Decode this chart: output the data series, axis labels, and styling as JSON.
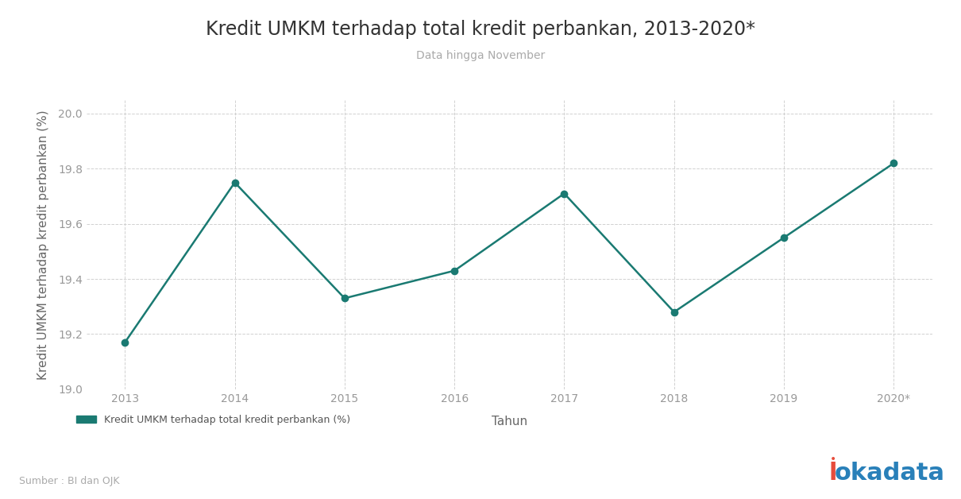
{
  "title": "Kredit UMKM terhadap total kredit perbankan, 2013-2020*",
  "subtitle": "Data hingga November",
  "xlabel": "Tahun",
  "ylabel": "Kredit UMKM terhadap kredit perbankan (%)",
  "source": "Sumber : BI dan OJK",
  "legend_label": "Kredit UMKM terhadap total kredit perbankan (%)",
  "years": [
    "2013",
    "2014",
    "2015",
    "2016",
    "2017",
    "2018",
    "2019",
    "2020*"
  ],
  "values": [
    19.17,
    19.75,
    19.33,
    19.43,
    19.71,
    19.28,
    19.55,
    19.82
  ],
  "ylim": [
    19.05,
    20.05
  ],
  "yticks": [
    19.0,
    19.2,
    19.4,
    19.6,
    19.8,
    20.0
  ],
  "line_color": "#1a7a72",
  "marker": "o",
  "marker_size": 6,
  "line_width": 1.8,
  "bg_color": "#ffffff",
  "plot_bg_color": "#ffffff",
  "grid_color": "#cccccc",
  "title_fontsize": 17,
  "subtitle_fontsize": 10,
  "axis_label_fontsize": 11,
  "tick_fontsize": 10,
  "legend_fontsize": 9,
  "source_fontsize": 9,
  "title_color": "#333333",
  "subtitle_color": "#aaaaaa",
  "axis_label_color": "#666666",
  "tick_color": "#999999",
  "legend_color": "#555555",
  "source_color": "#aaaaaa"
}
